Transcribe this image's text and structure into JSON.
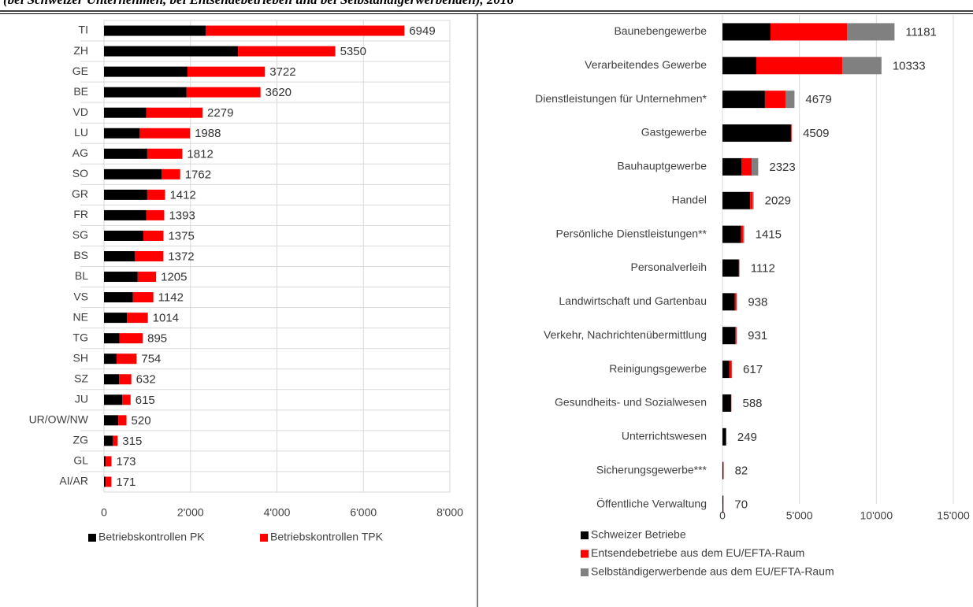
{
  "title": "(bei Schweizer Unternehmen, bei Entsendebetrieben und bei Selbständigerwerbenden), 2016",
  "chart_data": [
    {
      "type": "stacked_barh",
      "categories": [
        "TI",
        "ZH",
        "GE",
        "BE",
        "VD",
        "LU",
        "AG",
        "SO",
        "GR",
        "FR",
        "SG",
        "BS",
        "BL",
        "VS",
        "NE",
        "TG",
        "SH",
        "SZ",
        "JU",
        "UR/OW/NW",
        "ZG",
        "GL",
        "AI/AR"
      ],
      "series": [
        {
          "name": "Betriebskontrollen PK",
          "color": "#000000",
          "values": [
            2350,
            3100,
            1930,
            1910,
            980,
            820,
            1000,
            1330,
            1000,
            980,
            910,
            710,
            780,
            670,
            530,
            360,
            290,
            350,
            420,
            330,
            200,
            40,
            40
          ]
        },
        {
          "name": "Betriebskontrollen TPK",
          "color": "#ff0000",
          "values": [
            4599,
            2250,
            1792,
            1710,
            1299,
            1168,
            812,
            432,
            412,
            413,
            465,
            662,
            425,
            472,
            484,
            535,
            464,
            282,
            195,
            190,
            115,
            133,
            131
          ]
        }
      ],
      "totals": [
        6949,
        5350,
        3722,
        3620,
        2279,
        1988,
        1812,
        1762,
        1412,
        1393,
        1375,
        1372,
        1205,
        1142,
        1014,
        895,
        754,
        632,
        615,
        520,
        315,
        173,
        171
      ],
      "xlim": [
        0,
        8000
      ],
      "xticks": [
        0,
        {
          "value": 2000,
          "label": "2'000"
        },
        {
          "value": 4000,
          "label": "4'000"
        },
        {
          "value": 6000,
          "label": "6'000"
        },
        {
          "value": 8000,
          "label": "8'000"
        }
      ],
      "grid": true,
      "legend": "bottom"
    },
    {
      "type": "stacked_barh",
      "categories": [
        "Baunebengewerbe",
        "Verarbeitendes Gewerbe",
        "Dienstleistungen für Unternehmen*",
        "Gastgewerbe",
        "Bauhauptgewerbe",
        "Handel",
        "Persönliche Dienstleistungen**",
        "Personalverleih",
        "Landwirtschaft und Gartenbau",
        "Verkehr, Nachrichtenübermittlung",
        "Reinigungsgewerbe",
        "Gesundheits- und Sozialwesen",
        "Unterrichtswesen",
        "Sicherungsgewerbe***",
        "Öffentliche Verwaltung"
      ],
      "series": [
        {
          "name": "Schweizer Betriebe",
          "color": "#000000",
          "values": [
            3120,
            2200,
            2760,
            4450,
            1230,
            1800,
            1200,
            1050,
            800,
            820,
            450,
            560,
            230,
            60,
            60
          ]
        },
        {
          "name": "Entsendebetriebe aus dem EU/EFTA-Raum",
          "color": "#ff0000",
          "values": [
            4970,
            5580,
            1340,
            40,
            670,
            150,
            130,
            40,
            110,
            90,
            150,
            20,
            10,
            15,
            5
          ]
        },
        {
          "name": "Selbständigerwerbende aus dem EU/EFTA-Raum",
          "color": "#808080",
          "values": [
            3091,
            2553,
            579,
            19,
            423,
            79,
            85,
            22,
            28,
            21,
            17,
            8,
            9,
            7,
            5
          ]
        }
      ],
      "totals": [
        11181,
        10333,
        4679,
        4509,
        2323,
        2029,
        1415,
        1112,
        938,
        931,
        617,
        588,
        249,
        82,
        70
      ],
      "xlim": [
        0,
        15000
      ],
      "xticks": [
        0,
        {
          "value": 5000,
          "label": "5'000"
        },
        {
          "value": 10000,
          "label": "10'000"
        },
        {
          "value": 15000,
          "label": "15'000"
        }
      ],
      "grid": true,
      "legend": "bottom"
    }
  ]
}
